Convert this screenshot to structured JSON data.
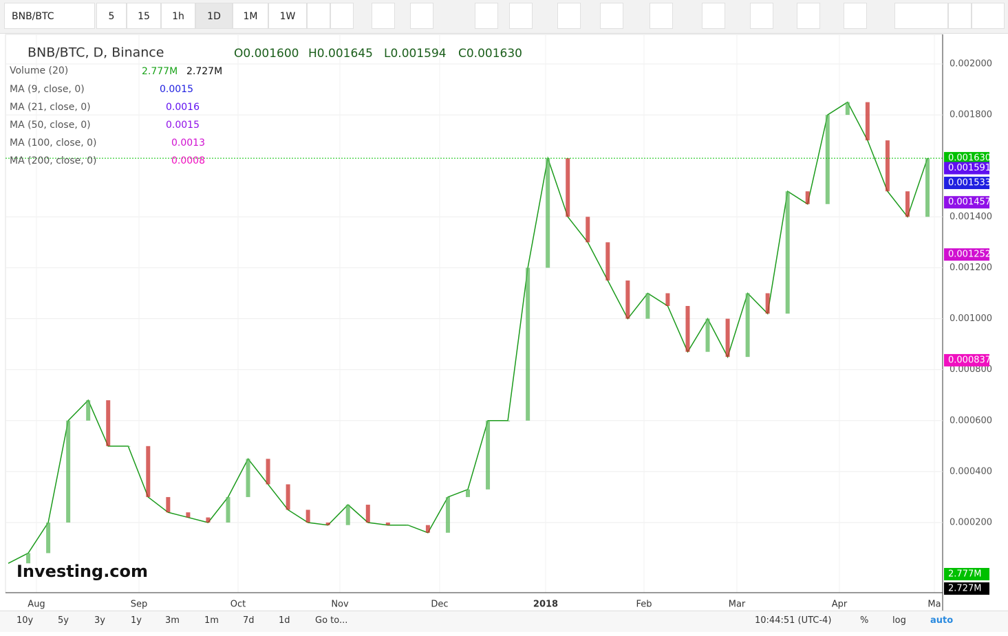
{
  "toolbar": {
    "symbol": "BNB/BTC",
    "intervals": [
      "5",
      "15",
      "1h",
      "1D",
      "1M",
      "1W"
    ]
  },
  "legend": {
    "title": "BNB/BTC, D, Binance",
    "ohlc": [
      "O0.001600",
      "H0.001645",
      "L0.001594",
      "C0.001630"
    ],
    "volume": {
      "name": "Volume (20)",
      "values": [
        "2.777M",
        "2.727M"
      ]
    },
    "indicators": [
      {
        "name": "MA (9, close, 0)",
        "value": "0.0015",
        "color": "#2020e0"
      },
      {
        "name": "MA (21, close, 0)",
        "value": "0.0016",
        "color": "#6010f0"
      },
      {
        "name": "MA (50, close, 0)",
        "value": "0.0015",
        "color": "#9010e8"
      },
      {
        "name": "MA (100, close, 0)",
        "value": "0.0013",
        "color": "#d010d0"
      },
      {
        "name": "MA (200, close, 0)",
        "value": "0.0008",
        "color": "#f010c0"
      }
    ]
  },
  "chart_data": {
    "type": "line",
    "color": "#1a9a1a",
    "values": [
      4e-05,
      8e-05,
      0.0002,
      0.0006,
      0.00068,
      0.0005,
      0.0005,
      0.0003,
      0.00024,
      0.00022,
      0.0002,
      0.0003,
      0.00045,
      0.00035,
      0.00025,
      0.0002,
      0.00019,
      0.00027,
      0.0002,
      0.00019,
      0.00019,
      0.00016,
      0.0003,
      0.00033,
      0.0006,
      0.0006,
      0.0012,
      0.00163,
      0.0014,
      0.0013,
      0.00115,
      0.001,
      0.0011,
      0.00105,
      0.00087,
      0.001,
      0.00085,
      0.0011,
      0.00102,
      0.0015,
      0.00145,
      0.0018,
      0.00185,
      0.0017,
      0.0015,
      0.0014,
      0.00163
    ],
    "ylim": [
      -7.53e-05,
      0.002116
    ],
    "yticks": [
      {
        "value": 0.002,
        "label": "0.002000"
      },
      {
        "value": 0.0018,
        "label": "0.001800"
      },
      {
        "value": 0.0014,
        "label": "0.001400"
      },
      {
        "value": 0.0012,
        "label": "0.001200"
      },
      {
        "value": 0.001,
        "label": "0.001000"
      },
      {
        "value": 0.0008,
        "label": "0.000800"
      },
      {
        "value": 0.0006,
        "label": "0.000600"
      },
      {
        "value": 0.0004,
        "label": "0.000400"
      },
      {
        "value": 0.0002,
        "label": "0.000200"
      }
    ],
    "price_tags": [
      {
        "value": 0.00163,
        "label": "0.001630",
        "color": "#00c000"
      },
      {
        "value": 0.001591,
        "label": "0.001591",
        "color": "#6010f0"
      },
      {
        "value": 0.001533,
        "label": "0.001533",
        "color": "#2020e0"
      },
      {
        "value": 0.001457,
        "label": "0.001457",
        "color": "#9010e8"
      },
      {
        "value": 0.001252,
        "label": "0.001252",
        "color": "#d010d0"
      },
      {
        "value": 0.000837,
        "label": "0.000837",
        "color": "#f010c0"
      }
    ],
    "x_labels": [
      "Aug",
      "Sep",
      "Oct",
      "Nov",
      "Dec",
      "2018",
      "Feb",
      "Mar",
      "Apr",
      "Ma"
    ]
  },
  "logo": "Investing.com",
  "bottombar": {
    "ranges": [
      "10y",
      "5y",
      "3y",
      "1y",
      "3m",
      "1m",
      "7d",
      "1d"
    ],
    "goto": "Go to...",
    "time": "10:44:51 (UTC-4)",
    "options": [
      "%",
      "log",
      "auto"
    ]
  }
}
